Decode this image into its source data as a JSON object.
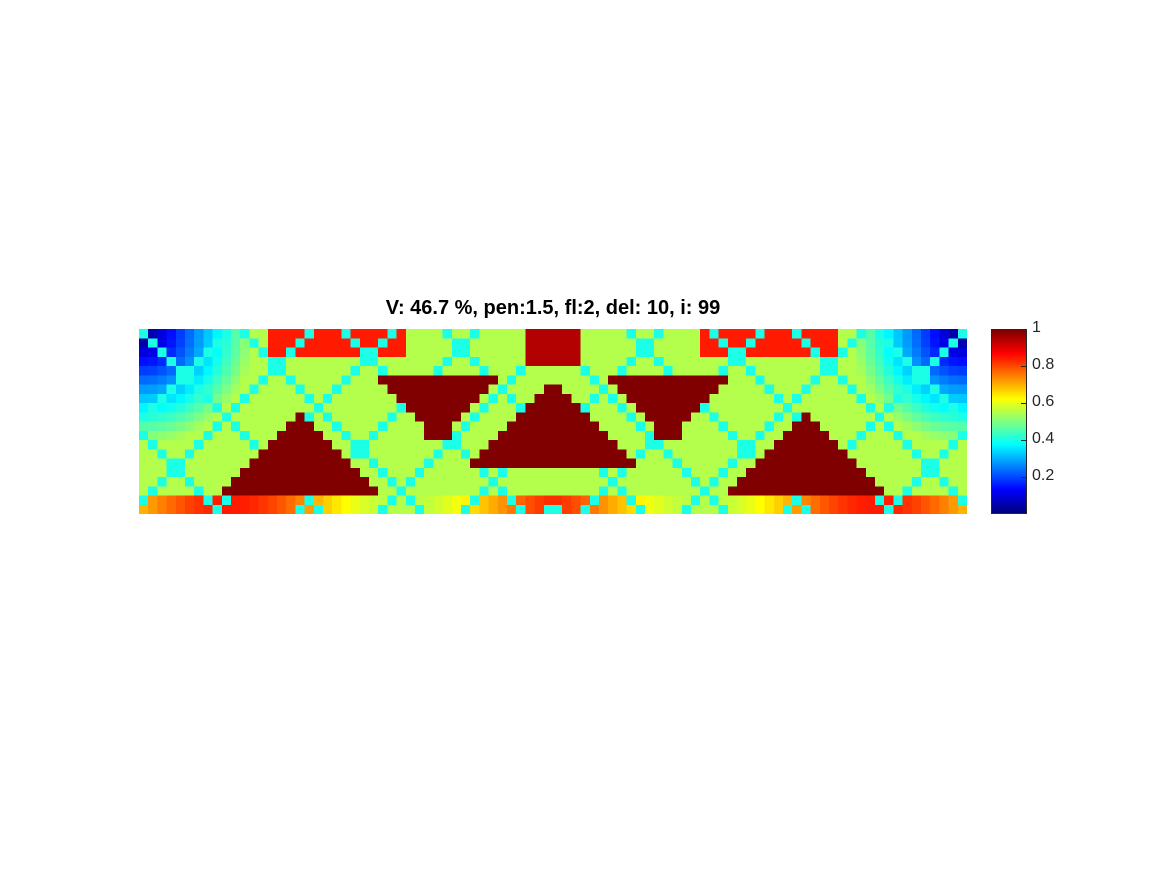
{
  "chart_data": {
    "type": "heatmap",
    "title": "V: 46.7 %, pen:1.5, fl:2, del: 10, i: 99",
    "colormap": "jet",
    "grid_cols": 90,
    "grid_rows": 20,
    "symmetric_about_center": true,
    "colorbar": {
      "min": 0.0,
      "max": 1.0,
      "ticks": [
        0.2,
        0.4,
        0.6,
        0.8,
        1
      ],
      "tick_labels": [
        "0.2",
        "0.4",
        "0.6",
        "0.8",
        "1"
      ]
    },
    "density_description": {
      "solid_value": 1.0,
      "void_corner_value": 0.0,
      "base_field_value": 0.55
    }
  }
}
